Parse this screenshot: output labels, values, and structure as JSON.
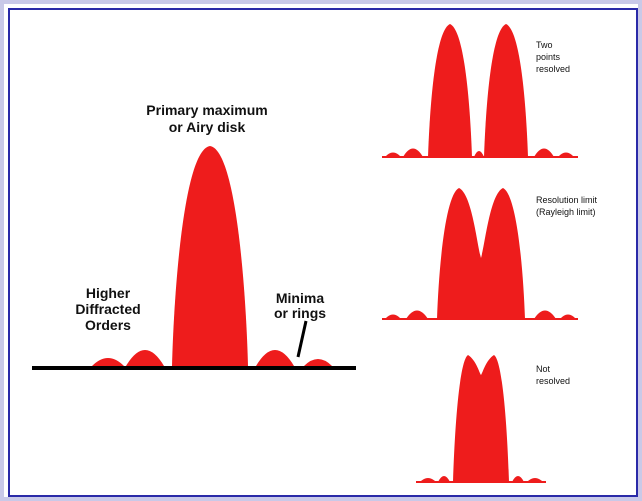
{
  "colors": {
    "peak_fill": "#ee1c1c",
    "baseline": "#000000",
    "frame_inner": "#2a2aa8",
    "frame_outer": "#c9c9e8"
  },
  "labels": {
    "primary_line1": "Primary maximum",
    "primary_line2": "or Airy disk",
    "higher_line1": "Higher",
    "higher_line2": "Diffracted",
    "higher_line3": "Orders",
    "minima_line1": "Minima",
    "minima_line2": "or rings",
    "two_line1": "Two",
    "two_line2": "points",
    "two_line3": "resolved",
    "limit_line1": "Resolution limit",
    "limit_line2": "(Rayleigh limit)",
    "not_line1": "Not",
    "not_line2": "resolved"
  }
}
